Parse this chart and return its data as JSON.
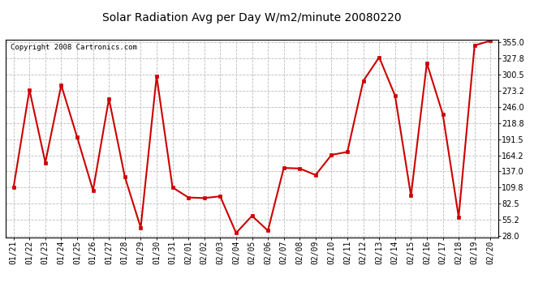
{
  "title": "Solar Radiation Avg per Day W/m2/minute 20080220",
  "copyright": "Copyright 2008 Cartronics.com",
  "dates": [
    "01/21",
    "01/22",
    "01/23",
    "01/24",
    "01/25",
    "01/26",
    "01/27",
    "01/28",
    "01/29",
    "01/30",
    "01/31",
    "02/01",
    "02/02",
    "02/03",
    "02/04",
    "02/05",
    "02/06",
    "02/07",
    "02/08",
    "02/09",
    "02/10",
    "02/11",
    "02/12",
    "02/13",
    "02/14",
    "02/15",
    "02/16",
    "02/17",
    "02/18",
    "02/19",
    "02/20"
  ],
  "values": [
    110,
    275,
    152,
    283,
    195,
    105,
    260,
    128,
    42,
    298,
    110,
    93,
    92,
    95,
    33,
    62,
    37,
    143,
    142,
    131,
    165,
    170,
    290,
    330,
    265,
    96,
    320,
    234,
    60,
    350,
    358
  ],
  "line_color": "#cc0000",
  "marker_color": "#cc0000",
  "bg_color": "#ffffff",
  "plot_bg_color": "#ffffff",
  "grid_color": "#bbbbbb",
  "yticks": [
    28.0,
    55.2,
    82.5,
    109.8,
    137.0,
    164.2,
    191.5,
    218.8,
    246.0,
    273.2,
    300.5,
    327.8,
    355.0
  ],
  "ymin": 28.0,
  "ymax": 355.0,
  "title_fontsize": 10,
  "copyright_fontsize": 6.5,
  "tick_fontsize": 7
}
